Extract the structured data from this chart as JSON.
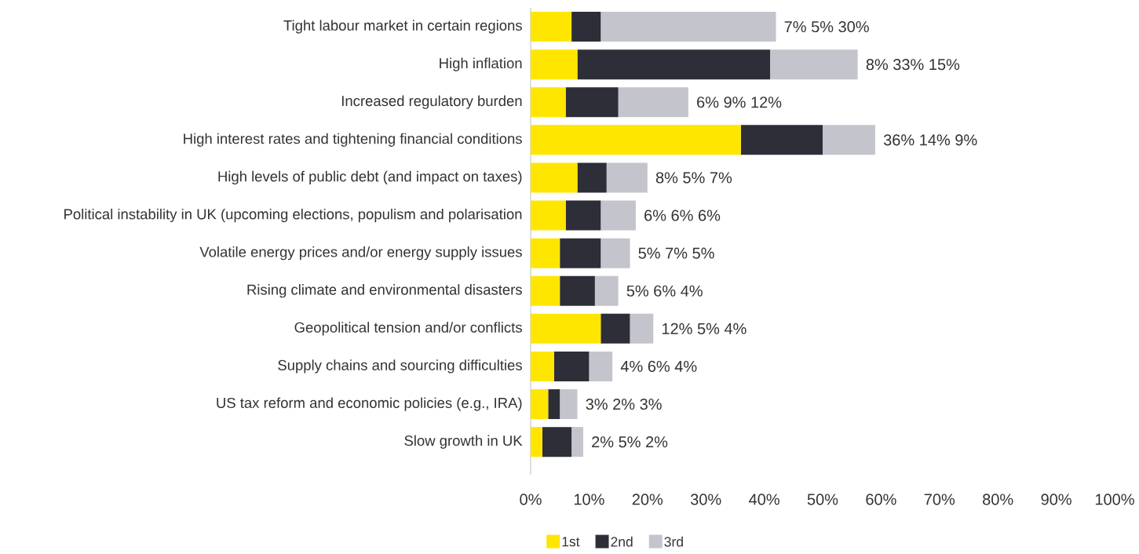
{
  "chart_data": {
    "type": "bar",
    "orientation": "horizontal",
    "stacked": true,
    "categories": [
      "Tight labour market in certain regions",
      "High inflation",
      "Increased regulatory burden",
      "High interest rates and tightening financial conditions",
      "High levels of public debt (and impact on taxes)",
      "Political instability in UK (upcoming elections, populism and polarisation",
      "Volatile energy prices and/or energy supply issues",
      "Rising climate and environmental disasters",
      "Geopolitical tension and/or conflicts",
      "Supply chains and sourcing difficulties",
      "US tax reform and economic policies (e.g., IRA)",
      "Slow growth in UK"
    ],
    "series": [
      {
        "name": "1st",
        "color": "#ffe600",
        "values": [
          7,
          8,
          6,
          36,
          8,
          6,
          5,
          5,
          12,
          4,
          3,
          2
        ]
      },
      {
        "name": "2nd",
        "color": "#2e2e38",
        "values": [
          5,
          33,
          9,
          14,
          5,
          6,
          7,
          6,
          5,
          6,
          2,
          5
        ]
      },
      {
        "name": "3rd",
        "color": "#c4c4cd",
        "values": [
          30,
          15,
          12,
          9,
          7,
          6,
          5,
          4,
          4,
          4,
          3,
          2
        ]
      }
    ],
    "annotations": [
      {
        "text": "7% 5% 30%",
        "x": 42,
        "y": "Tight labour market in certain regions"
      },
      {
        "text": "8% 33% 15%",
        "x": 56,
        "y": "High inflation"
      },
      {
        "text": "6% 9% 12%",
        "x": 27,
        "y": "Increased regulatory burden"
      },
      {
        "text": "36% 14% 9%",
        "x": 59,
        "y": "High interest rates and tightening financial conditions"
      },
      {
        "text": "8% 5% 7%",
        "x": 20,
        "y": "High levels of public debt (and impact on taxes)"
      },
      {
        "text": "6% 6% 6%",
        "x": 18,
        "y": "Political instability in UK (upcoming elections, populism and polarisation"
      },
      {
        "text": "5% 7% 5%",
        "x": 17,
        "y": "Volatile energy prices and/or energy supply issues"
      },
      {
        "text": "5% 6% 4%",
        "x": 15,
        "y": "Rising climate and environmental disasters"
      },
      {
        "text": "12% 5% 4%",
        "x": 21,
        "y": "Geopolitical tension and/or conflicts"
      },
      {
        "text": "4% 6% 4%",
        "x": 14,
        "y": "Supply chains and sourcing difficulties"
      },
      {
        "text": "3% 2% 3%",
        "x": 8,
        "y": "US tax reform and economic policies (e.g., IRA)"
      },
      {
        "text": "2% 5% 2%",
        "x": 9,
        "y": "Slow growth in UK"
      }
    ],
    "xlim": [
      0,
      100
    ],
    "xticks": [
      {
        "value": 0,
        "label": "0%"
      },
      {
        "value": 10,
        "label": "10%"
      },
      {
        "value": 20,
        "label": "20%"
      },
      {
        "value": 30,
        "label": "30%"
      },
      {
        "value": 40,
        "label": "40%"
      },
      {
        "value": 50,
        "label": "50%"
      },
      {
        "value": 60,
        "label": "60%"
      },
      {
        "value": 70,
        "label": "70%"
      },
      {
        "value": 80,
        "label": "80%"
      },
      {
        "value": 90,
        "label": "90%"
      },
      {
        "value": 100,
        "label": "100%"
      }
    ],
    "legend": "bottom"
  }
}
